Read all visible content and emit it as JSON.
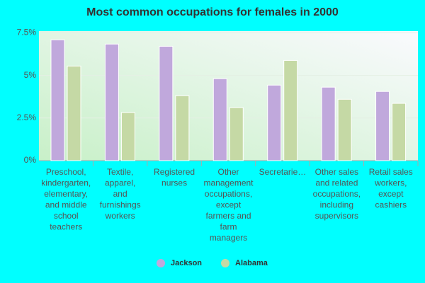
{
  "chart_data": {
    "type": "bar",
    "title": "Most common occupations for females in 2000",
    "categories": [
      [
        "Preschool,",
        "kindergarten,",
        "elementary,",
        "and middle",
        "school",
        "teachers"
      ],
      [
        "Textile,",
        "apparel,",
        "and",
        "furnishings",
        "workers"
      ],
      [
        "Registered",
        "nurses"
      ],
      [
        "Other",
        "management",
        "occupations,",
        "except",
        "farmers and",
        "farm",
        "managers"
      ],
      [
        "Secretarie…"
      ],
      [
        "Other sales",
        "and related",
        "occupations,",
        "including",
        "supervisors"
      ],
      [
        "Retail sales",
        "workers,",
        "except",
        "cashiers"
      ]
    ],
    "series": [
      {
        "name": "Jackson",
        "color": "#c0a8dc",
        "values": [
          7.09,
          6.84,
          6.71,
          4.81,
          4.43,
          4.31,
          4.06
        ]
      },
      {
        "name": "Alabama",
        "color": "#c5d9a5",
        "values": [
          5.55,
          2.82,
          3.81,
          3.11,
          5.88,
          3.6,
          3.36
        ]
      }
    ],
    "ylim": [
      0,
      7.6
    ],
    "yticks": [
      {
        "value": 0,
        "label": "0%"
      },
      {
        "value": 2.5,
        "label": "2.5%"
      },
      {
        "value": 5,
        "label": "5%"
      },
      {
        "value": 7.5,
        "label": "7.5%"
      }
    ],
    "grid": true,
    "legend": "bottom"
  }
}
